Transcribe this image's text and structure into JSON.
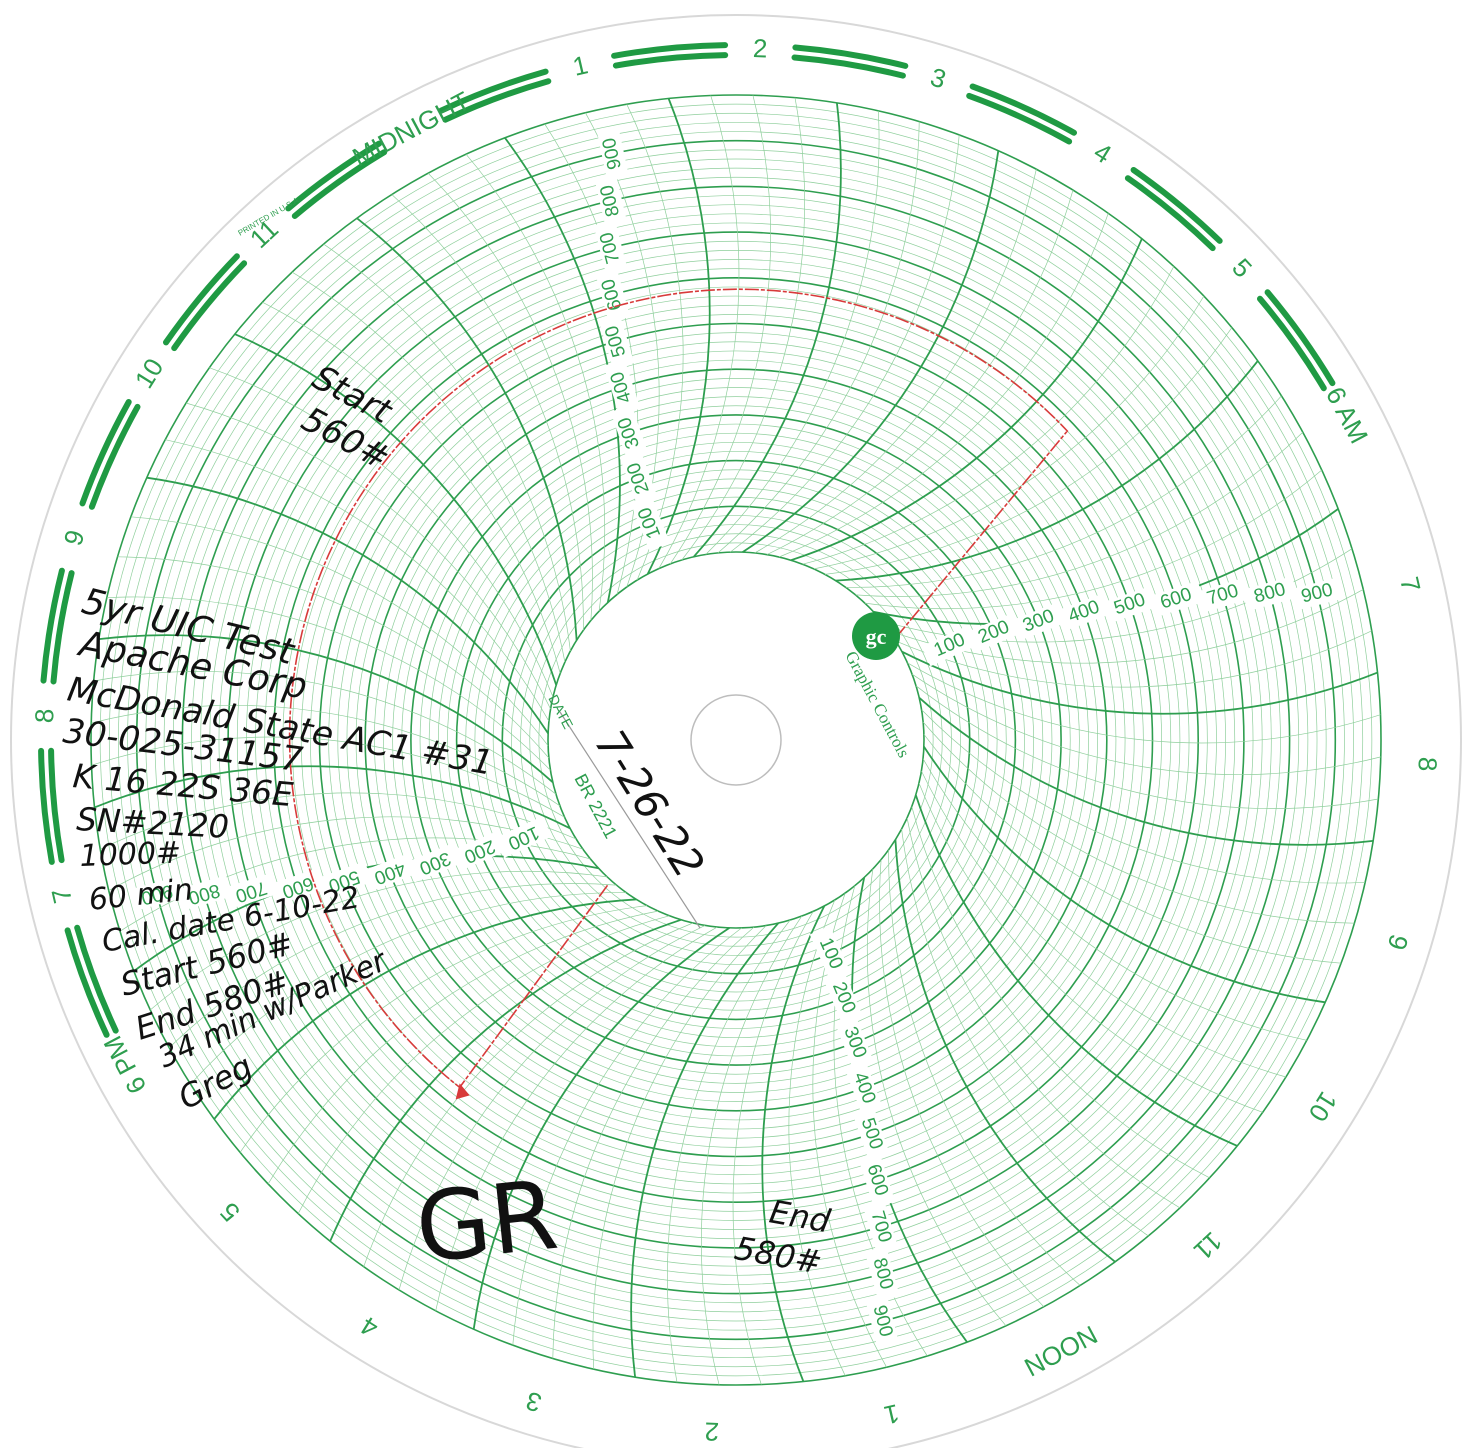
{
  "colors": {
    "paper": "#ffffff",
    "grid_green": "#2e9e4f",
    "grid_green_light": "#8fcf9c",
    "band_green": "#1f9a43",
    "trace_red": "#d83a3a",
    "ink": "#111111"
  },
  "chart": {
    "time_labels": [
      "MIDNIGHT",
      "1",
      "2",
      "3",
      "4",
      "5",
      "6 AM",
      "7",
      "8",
      "9",
      "10",
      "11",
      "NOON",
      "1",
      "2",
      "3",
      "4",
      "5",
      "6 PM",
      "7",
      "8",
      "9",
      "10",
      "11"
    ],
    "scale_labels": [
      "100",
      "200",
      "300",
      "400",
      "500",
      "600",
      "700",
      "800",
      "900"
    ],
    "printed_note": "PRINTED IN U.S.A.",
    "brand": "Graphic Controls",
    "logo_text": "gc",
    "date_label": "DATE",
    "chart_number": "BR 2221"
  },
  "chart_data": {
    "type": "circular-pressure-chart",
    "period_hours": 24,
    "scale_max": 1000,
    "unit": "#",
    "trace": [
      {
        "time": "4:30 PM",
        "value": 560
      },
      {
        "time": "12:00 AM",
        "value": 570
      },
      {
        "time": "5:00 AM",
        "value": 580
      },
      {
        "time": "5:00 AM",
        "value": 0
      }
    ]
  },
  "annotations": {
    "start_note": [
      "Start",
      "560#"
    ],
    "end_note": [
      "End",
      "580#"
    ],
    "date_written": "7-26-22",
    "initials": "GR",
    "info_lines": [
      "5yr UIC Test",
      "Apache Corp",
      "McDonald State AC1 #31",
      "30-025-31157",
      "K 16 22S 36E",
      "SN#2120",
      "1000#",
      "60 min",
      "Cal. date 6-10-22",
      "Start 560#",
      "End 580#",
      "34 min w/Parker",
      "Greg"
    ]
  }
}
